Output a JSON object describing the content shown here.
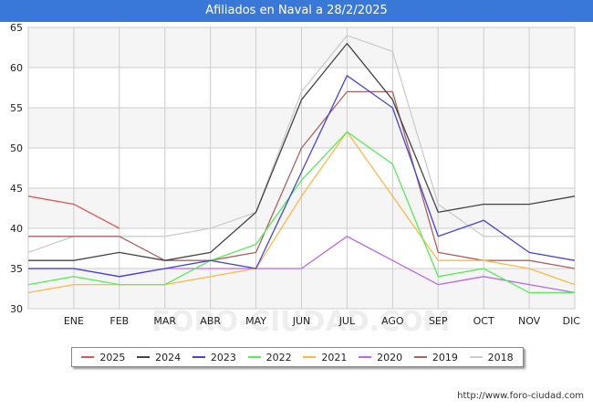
{
  "header": {
    "title": "Afiliados en Naval a 28/2/2025"
  },
  "watermark": "FORO-CIUDAD.COM",
  "footer": {
    "url": "http://www.foro-ciudad.com"
  },
  "chart_data": {
    "type": "line",
    "title": "Afiliados en Naval a 28/2/2025",
    "xlabel": "",
    "ylabel": "",
    "categories": [
      "",
      "ENE",
      "FEB",
      "MAR",
      "ABR",
      "MAY",
      "JUN",
      "JUL",
      "AGO",
      "SEP",
      "OCT",
      "NOV",
      "DIC"
    ],
    "ylim": [
      30,
      65
    ],
    "yticks": [
      30,
      35,
      40,
      45,
      50,
      55,
      60,
      65
    ],
    "grid": true,
    "legend_position": "bottom",
    "series": [
      {
        "name": "2025",
        "color": "#e05555",
        "values": [
          44,
          43,
          40,
          null,
          null,
          null,
          null,
          null,
          null,
          null,
          null,
          null,
          null
        ]
      },
      {
        "name": "2024",
        "color": "#444444",
        "values": [
          36,
          36,
          37,
          36,
          37,
          42,
          56,
          63,
          56,
          42,
          43,
          43,
          44
        ]
      },
      {
        "name": "2023",
        "color": "#4444dd",
        "values": [
          35,
          35,
          34,
          35,
          36,
          35,
          47,
          59,
          55,
          39,
          41,
          37,
          36
        ]
      },
      {
        "name": "2022",
        "color": "#55ee55",
        "values": [
          33,
          34,
          33,
          33,
          36,
          38,
          46,
          52,
          48,
          34,
          35,
          32,
          32
        ]
      },
      {
        "name": "2021",
        "color": "#ffb845",
        "values": [
          32,
          33,
          33,
          33,
          34,
          35,
          44,
          52,
          44,
          36,
          36,
          35,
          33
        ]
      },
      {
        "name": "2020",
        "color": "#bb66ee",
        "values": [
          35,
          35,
          34,
          35,
          35,
          35,
          35,
          39,
          36,
          33,
          34,
          33,
          32
        ]
      },
      {
        "name": "2019",
        "color": "#b06060",
        "values": [
          39,
          39,
          39,
          36,
          36,
          37,
          50,
          57,
          57,
          37,
          36,
          36,
          35
        ]
      },
      {
        "name": "2018",
        "color": "#cccccc",
        "values": [
          37,
          39,
          39,
          39,
          40,
          42,
          57,
          64,
          62,
          43,
          39,
          39,
          39
        ]
      }
    ]
  }
}
